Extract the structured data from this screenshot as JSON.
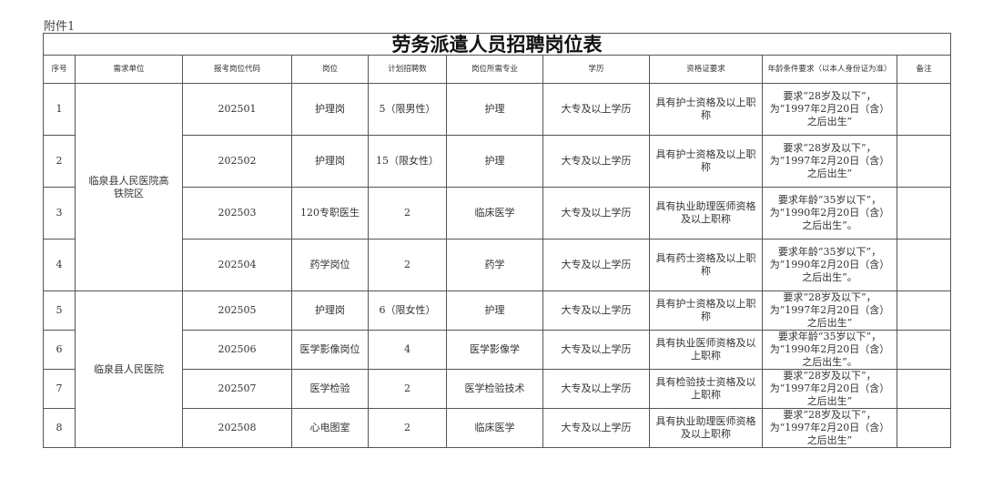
{
  "attachment_label": "附件1",
  "title": "劳务派遣人员招聘岗位表",
  "headers": [
    "序号",
    "需求单位",
    "报考岗位代码",
    "岗位",
    "计划招聘数",
    "岗位所需专业",
    "学历",
    "资格证要求",
    "年龄条件要求（以本人身份证为准）",
    "备注"
  ],
  "units": [
    {
      "name": "临泉县人民医院高铁院区",
      "rows": 4
    },
    {
      "name": "临泉县人民医院",
      "rows": 4
    }
  ],
  "rows": [
    {
      "no": "1",
      "code": "202501",
      "position": "护理岗",
      "count": "5（限男性）",
      "major": "护理",
      "education": "大专及以上学历",
      "certificate": "具有护士资格及以上职称",
      "age": "要求“28岁及以下”，为“1997年2月20日（含）之后出生”",
      "note": ""
    },
    {
      "no": "2",
      "code": "202502",
      "position": "护理岗",
      "count": "15（限女性）",
      "major": "护理",
      "education": "大专及以上学历",
      "certificate": "具有护士资格及以上职称",
      "age": "要求“28岁及以下”，为“1997年2月20日（含）之后出生”",
      "note": ""
    },
    {
      "no": "3",
      "code": "202503",
      "position": "120专职医生",
      "count": "2",
      "major": "临床医学",
      "education": "大专及以上学历",
      "certificate": "具有执业助理医师资格及以上职称",
      "age": "要求年龄“35岁以下”，为“1990年2月20日（含）之后出生”。",
      "note": ""
    },
    {
      "no": "4",
      "code": "202504",
      "position": "药学岗位",
      "count": "2",
      "major": "药学",
      "education": "大专及以上学历",
      "certificate": "具有药士资格及以上职称",
      "age": "要求年龄“35岁以下”，为“1990年2月20日（含）之后出生”。",
      "note": ""
    },
    {
      "no": "5",
      "code": "202505",
      "position": "护理岗",
      "count": "6（限女性）",
      "major": "护理",
      "education": "大专及以上学历",
      "certificate": "具有护士资格及以上职称",
      "age": "要求“28岁及以下”，为“1997年2月20日（含）之后出生”",
      "note": ""
    },
    {
      "no": "6",
      "code": "202506",
      "position": "医学影像岗位",
      "count": "4",
      "major": "医学影像学",
      "education": "大专及以上学历",
      "certificate": "具有执业医师资格及以上职称",
      "age": "要求年龄“35岁以下”，为“1990年2月20日（含）之后出生”。",
      "note": ""
    },
    {
      "no": "7",
      "code": "202507",
      "position": "医学检验",
      "count": "2",
      "major": "医学检验技术",
      "education": "大专及以上学历",
      "certificate": "具有检验技士资格及以上职称",
      "age": "要求“28岁及以下”，为“1997年2月20日（含）之后出生”",
      "note": ""
    },
    {
      "no": "8",
      "code": "202508",
      "position": "心电图室",
      "count": "2",
      "major": "临床医学",
      "education": "大专及以上学历",
      "certificate": "具有执业助理医师资格及以上职称",
      "age": "要求“28岁及以下”，为“1997年2月20日（含）之后出生”",
      "note": ""
    }
  ]
}
